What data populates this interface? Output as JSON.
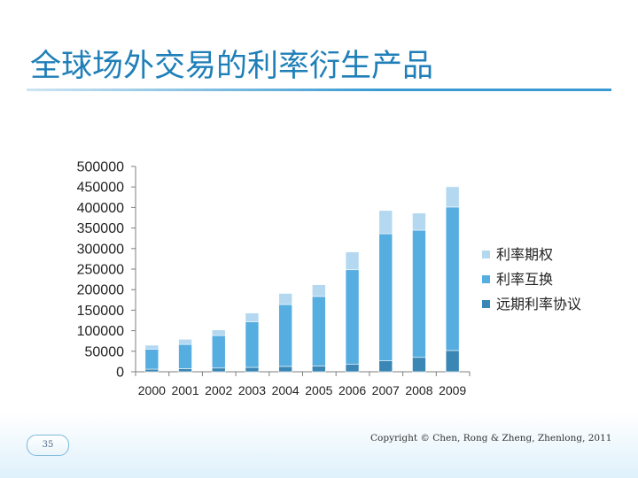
{
  "slide": {
    "title": "全球场外交易的利率衍生产品",
    "page_number": "35",
    "copyright": "Copyright © Chen, Rong & Zheng, Zhenlong, 2011"
  },
  "colors": {
    "title": "#1f7fb8",
    "rule": "#3a9ad2"
  },
  "chart_data": {
    "type": "bar",
    "stacked": true,
    "categories": [
      "2000",
      "2001",
      "2002",
      "2003",
      "2004",
      "2005",
      "2006",
      "2007",
      "2008",
      "2009"
    ],
    "series": [
      {
        "name": "远期利率协议",
        "color": "#3a86b4",
        "values": [
          6400,
          7700,
          9100,
          10800,
          13100,
          14300,
          18700,
          26600,
          35000,
          51800
        ]
      },
      {
        "name": "利率互换",
        "color": "#55ade0",
        "values": [
          48800,
          58900,
          79100,
          111200,
          150600,
          169100,
          229700,
          309600,
          309800,
          349300
        ]
      },
      {
        "name": "利率期权",
        "color": "#b3d8f0",
        "values": [
          9500,
          12500,
          13700,
          21100,
          27100,
          28600,
          43300,
          56600,
          41700,
          49500
        ]
      }
    ],
    "legend_order": [
      "利率期权",
      "利率互换",
      "远期利率协议"
    ],
    "yticks": [
      "0",
      "50000",
      "100000",
      "150000",
      "200000",
      "250000",
      "300000",
      "350000",
      "400000",
      "450000",
      "500000"
    ],
    "ylim": [
      0,
      500000
    ],
    "legend": "right"
  }
}
